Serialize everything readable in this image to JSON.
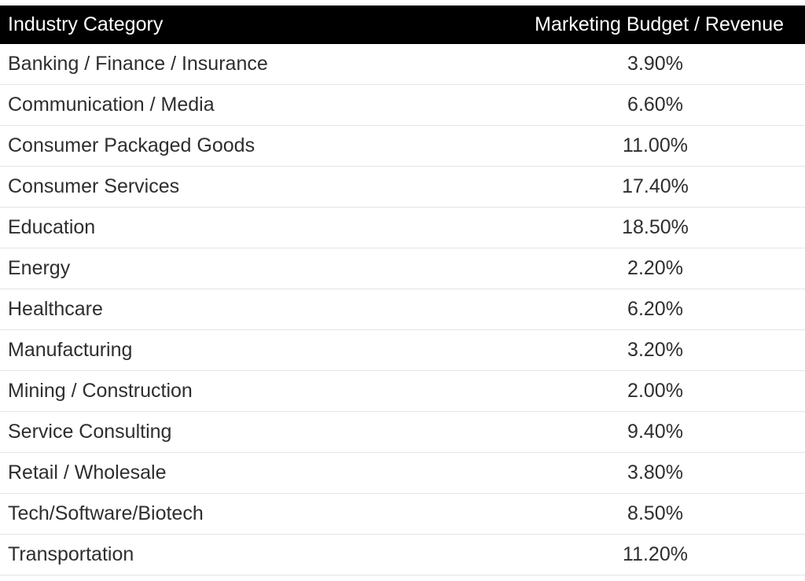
{
  "chart_data": {
    "type": "table",
    "columns": [
      "Industry Category",
      "Marketing Budget / Revenue"
    ],
    "rows": [
      [
        "Banking / Finance / Insurance",
        "3.90%"
      ],
      [
        "Communication / Media",
        "6.60%"
      ],
      [
        "Consumer Packaged Goods",
        "11.00%"
      ],
      [
        "Consumer Services",
        "17.40%"
      ],
      [
        "Education",
        "18.50%"
      ],
      [
        "Energy",
        "2.20%"
      ],
      [
        "Healthcare",
        "6.20%"
      ],
      [
        "Manufacturing",
        "3.20%"
      ],
      [
        "Mining / Construction",
        "2.00%"
      ],
      [
        "Service Consulting",
        "9.40%"
      ],
      [
        "Retail / Wholesale",
        "3.80%"
      ],
      [
        "Tech/Software/Biotech",
        "8.50%"
      ],
      [
        "Transportation",
        "11.20%"
      ]
    ]
  }
}
